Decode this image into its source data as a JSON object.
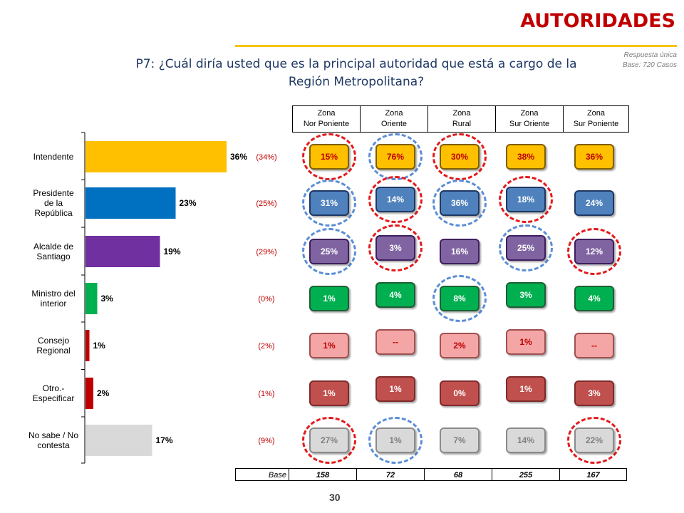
{
  "header": {
    "title": "AUTORIDADES",
    "note1": "Respuesta única",
    "note2": "Base: 720 Casos",
    "question_line1": "P7: ¿Cuál diría usted que es la principal autoridad que está a cargo de la",
    "question_line2": "Región Metropolitana?",
    "page_number": "30"
  },
  "zones": [
    {
      "l1": "Zona",
      "l2": "Nor Poniente"
    },
    {
      "l1": "Zona",
      "l2": "Oriente"
    },
    {
      "l1": "Zona",
      "l2": "Rural"
    },
    {
      "l1": "Zona",
      "l2": "Sur Oriente"
    },
    {
      "l1": "Zona",
      "l2": "Sur Poniente"
    }
  ],
  "base": {
    "label": "Base",
    "values": [
      "158",
      "72",
      "68",
      "255",
      "167"
    ]
  },
  "colors": {
    "intendente": "#ffc000",
    "presidente": "#0070c0",
    "alcalde": "#7030a0",
    "ministro": "#00b050",
    "consejo": "#c00000",
    "otro": "#c00000",
    "nosabe": "#d9d9d9",
    "ring_red": "#e31a1c",
    "ring_blue": "#5b8ed6"
  },
  "chart_data": {
    "type": "bar",
    "orientation": "horizontal",
    "categories": [
      [
        "Intendente"
      ],
      [
        "Presidente",
        "de la",
        "República"
      ],
      [
        "Alcalde de",
        "Santiago"
      ],
      [
        "Ministro del",
        "interior"
      ],
      [
        "Consejo",
        "Regional"
      ],
      [
        "Otro.-",
        "Especificar"
      ],
      [
        "No sabe / No",
        "contesta"
      ]
    ],
    "values": [
      36,
      23,
      19,
      3,
      1,
      2,
      17
    ],
    "value_labels": [
      "36%",
      "23%",
      "19%",
      "3%",
      "1%",
      "2%",
      "17%"
    ],
    "previous_labels": [
      "(34%)",
      "(25%)",
      "(29%)",
      "(0%)",
      "(2%)",
      "(1%)",
      "(9%)"
    ],
    "xlim": [
      0,
      36
    ],
    "zone_values": [
      [
        "15%",
        "76%",
        "30%",
        "38%",
        "36%"
      ],
      [
        "31%",
        "14%",
        "36%",
        "18%",
        "24%"
      ],
      [
        "25%",
        "3%",
        "16%",
        "25%",
        "12%"
      ],
      [
        "1%",
        "4%",
        "8%",
        "3%",
        "4%"
      ],
      [
        "1%",
        "--",
        "2%",
        "1%",
        "--"
      ],
      [
        "1%",
        "1%",
        "0%",
        "1%",
        "3%"
      ],
      [
        "27%",
        "1%",
        "7%",
        "14%",
        "22%"
      ]
    ],
    "highlights": [
      [
        "red",
        "blue",
        "red",
        "none",
        "none"
      ],
      [
        "blue",
        "red",
        "blue",
        "red",
        "none"
      ],
      [
        "blue",
        "red",
        "none",
        "blue",
        "red"
      ],
      [
        "none",
        "none",
        "blue",
        "none",
        "none"
      ],
      [
        "none",
        "none",
        "none",
        "none",
        "none"
      ],
      [
        "none",
        "none",
        "none",
        "none",
        "none"
      ],
      [
        "red",
        "blue",
        "none",
        "none",
        "red"
      ]
    ]
  }
}
